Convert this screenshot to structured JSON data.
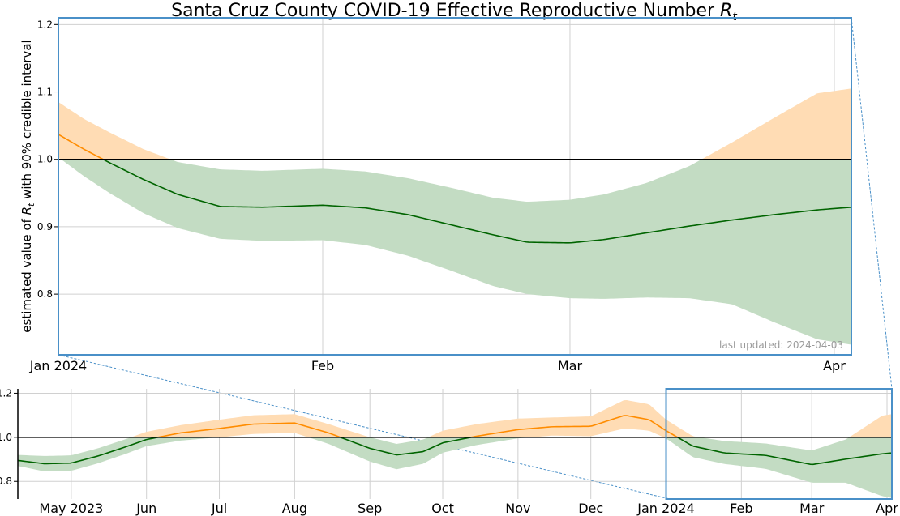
{
  "chart_data": {
    "type": "area",
    "title": "Santa Cruz County COVID-19 Effective Reproductive Number",
    "title_symbol": "R",
    "title_symbol_sub": "t",
    "ylabel_pre": "estimated value of",
    "ylabel_symbol": "R",
    "ylabel_symbol_sub": "t",
    "ylabel_post": "with 90% credible interval",
    "annotation": "last updated: 2024-04-03",
    "threshold": 1.0,
    "colors": {
      "above": "#ff8c00",
      "above_band": "#ffdcb4",
      "below": "#006400",
      "below_band": "#c3dcc3",
      "threshold": "#000000",
      "frame": "#4a90c8",
      "grid": "#d0d0d0"
    },
    "main": {
      "xlim": [
        "2024-01-01",
        "2024-04-03"
      ],
      "ylim": [
        0.71,
        1.21
      ],
      "x_ticks": [
        {
          "date": "2024-01-01",
          "label": "Jan 2024"
        },
        {
          "date": "2024-02-01",
          "label": "Feb"
        },
        {
          "date": "2024-03-01",
          "label": "Mar"
        },
        {
          "date": "2024-04-01",
          "label": "Apr"
        }
      ],
      "y_ticks": [
        {
          "value": 0.8,
          "label": "0.8"
        },
        {
          "value": 0.9,
          "label": "0.9"
        },
        {
          "value": 1.0,
          "label": "1.0"
        },
        {
          "value": 1.1,
          "label": "1.1"
        },
        {
          "value": 1.2,
          "label": "1.2"
        }
      ],
      "points": [
        {
          "date": "2024-01-01",
          "rt": 1.037,
          "lower": 1.003,
          "upper": 1.085
        },
        {
          "date": "2024-01-04",
          "rt": 1.015,
          "lower": 0.975,
          "upper": 1.06
        },
        {
          "date": "2024-01-07",
          "rt": 0.995,
          "lower": 0.95,
          "upper": 1.04
        },
        {
          "date": "2024-01-11",
          "rt": 0.97,
          "lower": 0.92,
          "upper": 1.015
        },
        {
          "date": "2024-01-15",
          "rt": 0.948,
          "lower": 0.898,
          "upper": 0.996
        },
        {
          "date": "2024-01-20",
          "rt": 0.93,
          "lower": 0.882,
          "upper": 0.985
        },
        {
          "date": "2024-01-25",
          "rt": 0.929,
          "lower": 0.879,
          "upper": 0.983
        },
        {
          "date": "2024-02-01",
          "rt": 0.932,
          "lower": 0.88,
          "upper": 0.986
        },
        {
          "date": "2024-02-06",
          "rt": 0.928,
          "lower": 0.873,
          "upper": 0.982
        },
        {
          "date": "2024-02-11",
          "rt": 0.918,
          "lower": 0.857,
          "upper": 0.972
        },
        {
          "date": "2024-02-16",
          "rt": 0.903,
          "lower": 0.835,
          "upper": 0.958
        },
        {
          "date": "2024-02-21",
          "rt": 0.888,
          "lower": 0.812,
          "upper": 0.943
        },
        {
          "date": "2024-02-25",
          "rt": 0.877,
          "lower": 0.8,
          "upper": 0.937
        },
        {
          "date": "2024-03-01",
          "rt": 0.876,
          "lower": 0.794,
          "upper": 0.94
        },
        {
          "date": "2024-03-05",
          "rt": 0.881,
          "lower": 0.793,
          "upper": 0.948
        },
        {
          "date": "2024-03-10",
          "rt": 0.891,
          "lower": 0.795,
          "upper": 0.965
        },
        {
          "date": "2024-03-15",
          "rt": 0.901,
          "lower": 0.794,
          "upper": 0.99
        },
        {
          "date": "2024-03-20",
          "rt": 0.91,
          "lower": 0.785,
          "upper": 1.025
        },
        {
          "date": "2024-03-25",
          "rt": 0.918,
          "lower": 0.758,
          "upper": 1.062
        },
        {
          "date": "2024-03-30",
          "rt": 0.925,
          "lower": 0.733,
          "upper": 1.098
        },
        {
          "date": "2024-04-03",
          "rt": 0.929,
          "lower": 0.725,
          "upper": 1.105
        }
      ]
    },
    "overview": {
      "xlim": [
        "2023-04-09",
        "2024-04-03"
      ],
      "ylim": [
        0.72,
        1.22
      ],
      "x_ticks": [
        {
          "date": "2023-05-01",
          "label": "May 2023"
        },
        {
          "date": "2023-06-01",
          "label": "Jun"
        },
        {
          "date": "2023-07-01",
          "label": "Jul"
        },
        {
          "date": "2023-08-01",
          "label": "Aug"
        },
        {
          "date": "2023-09-01",
          "label": "Sep"
        },
        {
          "date": "2023-10-01",
          "label": "Oct"
        },
        {
          "date": "2023-11-01",
          "label": "Nov"
        },
        {
          "date": "2023-12-01",
          "label": "Dec"
        },
        {
          "date": "2024-01-01",
          "label": "Jan 2024"
        },
        {
          "date": "2024-02-01",
          "label": "Feb"
        },
        {
          "date": "2024-03-01",
          "label": "Mar"
        },
        {
          "date": "2024-04-01",
          "label": "Apr"
        }
      ],
      "y_ticks": [
        {
          "value": 0.8,
          "label": "0.8"
        },
        {
          "value": 1.0,
          "label": "1.0"
        },
        {
          "value": 1.2,
          "label": "1.2"
        }
      ],
      "zoom_window": [
        "2024-01-01",
        "2024-04-03"
      ],
      "points": [
        {
          "date": "2023-04-09",
          "rt": 0.895,
          "lower": 0.87,
          "upper": 0.92
        },
        {
          "date": "2023-04-20",
          "rt": 0.88,
          "lower": 0.845,
          "upper": 0.915
        },
        {
          "date": "2023-05-01",
          "rt": 0.883,
          "lower": 0.848,
          "upper": 0.918
        },
        {
          "date": "2023-05-12",
          "rt": 0.915,
          "lower": 0.882,
          "upper": 0.95
        },
        {
          "date": "2023-05-23",
          "rt": 0.955,
          "lower": 0.923,
          "upper": 0.99
        },
        {
          "date": "2023-06-01",
          "rt": 0.99,
          "lower": 0.96,
          "upper": 1.025
        },
        {
          "date": "2023-06-15",
          "rt": 1.02,
          "lower": 0.985,
          "upper": 1.055
        },
        {
          "date": "2023-07-01",
          "rt": 1.04,
          "lower": 1.0,
          "upper": 1.08
        },
        {
          "date": "2023-07-15",
          "rt": 1.06,
          "lower": 1.015,
          "upper": 1.1
        },
        {
          "date": "2023-08-01",
          "rt": 1.065,
          "lower": 1.02,
          "upper": 1.105
        },
        {
          "date": "2023-08-15",
          "rt": 1.02,
          "lower": 0.97,
          "upper": 1.06
        },
        {
          "date": "2023-09-01",
          "rt": 0.95,
          "lower": 0.89,
          "upper": 1.0
        },
        {
          "date": "2023-09-12",
          "rt": 0.92,
          "lower": 0.855,
          "upper": 0.97
        },
        {
          "date": "2023-09-23",
          "rt": 0.935,
          "lower": 0.88,
          "upper": 0.99
        },
        {
          "date": "2023-10-01",
          "rt": 0.975,
          "lower": 0.93,
          "upper": 1.03
        },
        {
          "date": "2023-10-15",
          "rt": 1.005,
          "lower": 0.965,
          "upper": 1.06
        },
        {
          "date": "2023-11-01",
          "rt": 1.035,
          "lower": 0.995,
          "upper": 1.085
        },
        {
          "date": "2023-11-15",
          "rt": 1.048,
          "lower": 1.008,
          "upper": 1.09
        },
        {
          "date": "2023-12-01",
          "rt": 1.05,
          "lower": 1.005,
          "upper": 1.095
        },
        {
          "date": "2023-12-15",
          "rt": 1.1,
          "lower": 1.04,
          "upper": 1.17
        },
        {
          "date": "2023-12-25",
          "rt": 1.08,
          "lower": 1.03,
          "upper": 1.15
        },
        {
          "date": "2024-01-01",
          "rt": 1.03,
          "lower": 0.995,
          "upper": 1.08
        },
        {
          "date": "2024-01-12",
          "rt": 0.96,
          "lower": 0.91,
          "upper": 1.005
        },
        {
          "date": "2024-01-25",
          "rt": 0.929,
          "lower": 0.879,
          "upper": 0.983
        },
        {
          "date": "2024-02-11",
          "rt": 0.918,
          "lower": 0.857,
          "upper": 0.972
        },
        {
          "date": "2024-03-01",
          "rt": 0.876,
          "lower": 0.794,
          "upper": 0.94
        },
        {
          "date": "2024-03-15",
          "rt": 0.901,
          "lower": 0.794,
          "upper": 0.99
        },
        {
          "date": "2024-03-30",
          "rt": 0.925,
          "lower": 0.733,
          "upper": 1.098
        },
        {
          "date": "2024-04-03",
          "rt": 0.929,
          "lower": 0.725,
          "upper": 1.105
        }
      ]
    }
  }
}
